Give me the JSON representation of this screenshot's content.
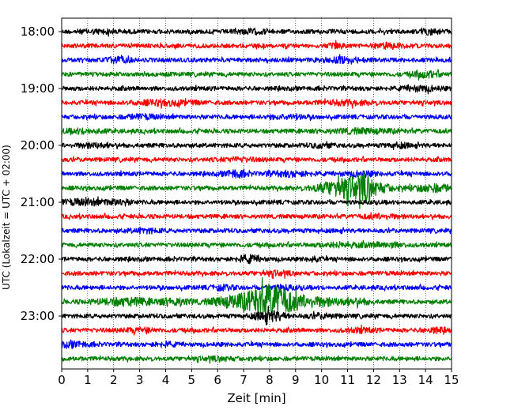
{
  "chart_data": {
    "type": "line",
    "xlabel": "Zeit  [min]",
    "ylabel": "UTC (Lokalzeit = UTC + 02:00)",
    "xlim": [
      0,
      15
    ],
    "x_ticks": [
      "0",
      "1",
      "2",
      "3",
      "4",
      "5",
      "6",
      "7",
      "8",
      "9",
      "10",
      "11",
      "12",
      "13",
      "14",
      "15"
    ],
    "y_tick_labels": [
      "18:00",
      "19:00",
      "20:00",
      "21:00",
      "22:00",
      "23:00"
    ],
    "grid": "vertical dotted lines at each minute",
    "trace_interval_min": 15,
    "trace_colors": [
      "#000000",
      "#ff0000",
      "#0000ff",
      "#008000"
    ],
    "traces": [
      {
        "start": "18:00",
        "color": "#000000",
        "base": 3.0,
        "bursts": [
          [
            1.5,
            1.6,
            0.6
          ],
          [
            7.3,
            2.0,
            0.4
          ],
          [
            14.2,
            2.5,
            0.3
          ]
        ]
      },
      {
        "start": "18:15",
        "color": "#ff0000",
        "base": 3.0,
        "bursts": [
          [
            10.6,
            2.5,
            0.2
          ],
          [
            12.6,
            2.5,
            0.4
          ]
        ]
      },
      {
        "start": "18:30",
        "color": "#0000ff",
        "base": 3.0,
        "bursts": [
          [
            2.1,
            3.0,
            0.3
          ],
          [
            10.8,
            2.5,
            0.6
          ]
        ]
      },
      {
        "start": "18:45",
        "color": "#008000",
        "base": 3.0,
        "bursts": [
          [
            14.0,
            3.0,
            0.4
          ]
        ]
      },
      {
        "start": "19:00",
        "color": "#000000",
        "base": 3.0,
        "bursts": [
          [
            13.8,
            2.5,
            0.5
          ]
        ]
      },
      {
        "start": "19:15",
        "color": "#ff0000",
        "base": 3.0,
        "bursts": [
          [
            4.0,
            2.5,
            0.8
          ],
          [
            11.0,
            2.0,
            0.7
          ]
        ]
      },
      {
        "start": "19:30",
        "color": "#0000ff",
        "base": 3.0,
        "bursts": [
          [
            3.1,
            2.0,
            0.5
          ],
          [
            8.7,
            2.0,
            0.5
          ]
        ]
      },
      {
        "start": "19:45",
        "color": "#008000",
        "base": 3.0,
        "bursts": [
          [
            0.8,
            2.0,
            0.6
          ],
          [
            11.5,
            2.0,
            1.0
          ]
        ]
      },
      {
        "start": "20:00",
        "color": "#000000",
        "base": 3.0,
        "bursts": [
          [
            1.2,
            2.0,
            0.5
          ],
          [
            10.0,
            2.0,
            0.3
          ],
          [
            13.0,
            2.0,
            0.3
          ]
        ]
      },
      {
        "start": "20:15",
        "color": "#ff0000",
        "base": 3.0,
        "bursts": [
          [
            6.8,
            1.5,
            0.5
          ]
        ]
      },
      {
        "start": "20:30",
        "color": "#0000ff",
        "base": 3.0,
        "bursts": [
          [
            6.7,
            4.0,
            0.3
          ],
          [
            8.8,
            2.5,
            0.6
          ],
          [
            11.5,
            2.0,
            0.5
          ]
        ]
      },
      {
        "start": "20:45",
        "color": "#008000",
        "base": 3.0,
        "bursts": [
          [
            11.2,
            14.0,
            0.8
          ],
          [
            11.7,
            9.0,
            0.15
          ],
          [
            14.3,
            4.0,
            0.5
          ]
        ]
      },
      {
        "start": "21:00",
        "color": "#000000",
        "base": 3.0,
        "bursts": [
          [
            0.9,
            2.8,
            0.8
          ],
          [
            2.3,
            1.8,
            0.3
          ]
        ]
      },
      {
        "start": "21:15",
        "color": "#ff0000",
        "base": 3.0,
        "bursts": [
          [
            12.3,
            2.0,
            0.5
          ]
        ]
      },
      {
        "start": "21:30",
        "color": "#0000ff",
        "base": 3.0,
        "bursts": [
          [
            3.2,
            2.0,
            0.4
          ]
        ]
      },
      {
        "start": "21:45",
        "color": "#008000",
        "base": 3.0,
        "bursts": [
          [
            10.8,
            2.0,
            0.6
          ],
          [
            12.5,
            2.0,
            0.5
          ]
        ]
      },
      {
        "start": "22:00",
        "color": "#000000",
        "base": 3.0,
        "bursts": [
          [
            7.2,
            4.0,
            0.3
          ],
          [
            9.7,
            2.0,
            0.2
          ]
        ]
      },
      {
        "start": "22:15",
        "color": "#ff0000",
        "base": 3.0,
        "bursts": [
          [
            8.3,
            2.0,
            0.4
          ]
        ]
      },
      {
        "start": "22:30",
        "color": "#0000ff",
        "base": 3.0,
        "bursts": [
          [
            6.2,
            2.2,
            0.3
          ],
          [
            8.5,
            2.0,
            0.4
          ]
        ]
      },
      {
        "start": "22:45",
        "color": "#008000",
        "base": 3.0,
        "bursts": [
          [
            7.8,
            15.0,
            0.6
          ],
          [
            8.3,
            10.0,
            0.5
          ],
          [
            6.5,
            5.5,
            0.6
          ],
          [
            2.5,
            4.0,
            0.8
          ],
          [
            4.4,
            4.0,
            0.4
          ],
          [
            9.2,
            4.0,
            0.4
          ],
          [
            10.0,
            4.5,
            0.5
          ],
          [
            11.3,
            3.0,
            0.4
          ]
        ]
      },
      {
        "start": "23:00",
        "color": "#000000",
        "base": 3.0,
        "bursts": [
          [
            8.0,
            6.0,
            0.4
          ],
          [
            10.0,
            2.0,
            0.4
          ]
        ]
      },
      {
        "start": "23:15",
        "color": "#ff0000",
        "base": 3.0,
        "bursts": [
          [
            3.0,
            2.0,
            0.4
          ],
          [
            11.5,
            2.0,
            0.4
          ],
          [
            14.4,
            2.0,
            0.3
          ]
        ]
      },
      {
        "start": "23:30",
        "color": "#0000ff",
        "base": 3.0,
        "bursts": [
          [
            0.5,
            2.5,
            0.4
          ],
          [
            4.0,
            2.0,
            0.3
          ]
        ]
      },
      {
        "start": "23:45",
        "color": "#008000",
        "base": 3.0,
        "bursts": [
          [
            6.0,
            1.5,
            0.5
          ]
        ]
      }
    ]
  }
}
